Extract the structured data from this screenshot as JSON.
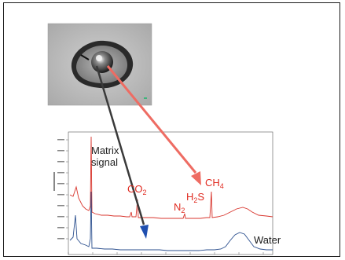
{
  "labels": {
    "matrix_line1": "Matrix",
    "matrix_line2": "signal",
    "co2_main": "CO",
    "co2_sub": "2",
    "n2_main": "N",
    "n2_sub": "2",
    "h2s_main": "H",
    "h2s_sub": "2",
    "h2s_tail": "S",
    "ch4_main": "CH",
    "ch4_sub": "4",
    "water": "Water"
  },
  "colors": {
    "red_spectrum": "#d8342c",
    "blue_spectrum": "#2b4f8e",
    "red_arrow": "#ee6c63",
    "dark_arrow": "#3a3a3a",
    "blue_arrowhead": "#1f4fb0",
    "label_red": "#e02a20"
  },
  "icons": {
    "micrograph": "fluid-inclusion-micrograph",
    "arrow_to_vapor": "red-arrow",
    "arrow_to_liquid": "dark-arrow"
  }
}
